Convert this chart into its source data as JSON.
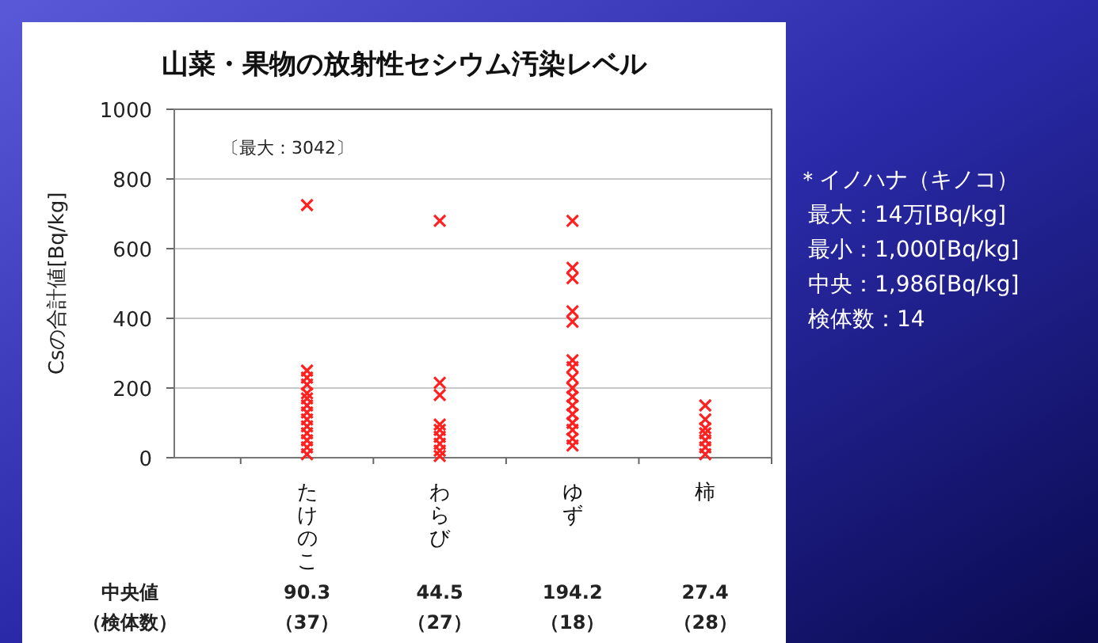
{
  "chart_data": {
    "type": "scatter",
    "title": "山菜・果物の放射性セシウム汚染レベル",
    "ylabel": "Csの合計値[Bq/kg]",
    "categories": [
      "たけのこ",
      "わらび",
      "ゆず",
      "柿"
    ],
    "series": [
      {
        "color": "#ff2020",
        "x": [
          "たけのこ",
          "たけのこ",
          "たけのこ",
          "たけのこ",
          "たけのこ",
          "たけのこ",
          "たけのこ",
          "たけのこ",
          "たけのこ",
          "たけのこ",
          "たけのこ",
          "たけのこ",
          "たけのこ",
          "たけのこ",
          "わらび",
          "わらび",
          "わらび",
          "わらび",
          "わらび",
          "わらび",
          "わらび",
          "わらび",
          "わらび",
          "ゆず",
          "ゆず",
          "ゆず",
          "ゆず",
          "ゆず",
          "ゆず",
          "ゆず",
          "ゆず",
          "ゆず",
          "ゆず",
          "ゆず",
          "ゆず",
          "ゆず",
          "ゆず",
          "ゆず",
          "ゆず",
          "柿",
          "柿",
          "柿",
          "柿",
          "柿",
          "柿",
          "柿"
        ],
        "values": [
          725,
          250,
          230,
          210,
          185,
          170,
          150,
          130,
          110,
          90,
          70,
          50,
          30,
          10,
          680,
          215,
          180,
          95,
          80,
          60,
          40,
          20,
          5,
          680,
          545,
          515,
          420,
          390,
          280,
          260,
          230,
          200,
          175,
          150,
          125,
          100,
          80,
          55,
          35,
          150,
          110,
          85,
          70,
          50,
          30,
          10
        ]
      }
    ],
    "marker": "cross",
    "ylim": [
      0,
      1000
    ],
    "yticks": [
      0,
      200,
      400,
      600,
      800,
      1000
    ],
    "grid": "y",
    "annotations": [
      "〔最大：3042〕",
      "＊イノハナ（キノコ）",
      "最大：14万[Bq/kg]",
      "最小：1,000[Bq/kg]",
      "中央：1,986[Bq/kg]",
      "検体数：14",
      "中央値",
      "（検体数）",
      "90.3",
      "（37）",
      "44.5",
      "（27）",
      "194.2",
      "（18）",
      "27.4",
      "（28）"
    ]
  }
}
